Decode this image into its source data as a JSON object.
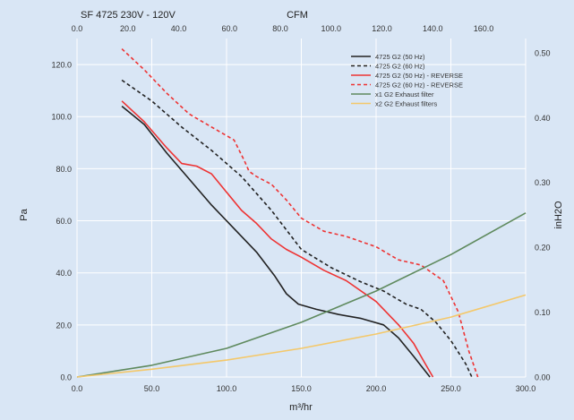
{
  "chart_data": {
    "type": "line",
    "title": "SF 4725  230V - 120V",
    "top_axis_label": "CFM",
    "xlabel": "m³/hr",
    "ylabel": "Pa",
    "y2label": "inH2O",
    "xlim": [
      0,
      300
    ],
    "ylim": [
      0,
      130
    ],
    "x_ticks": [
      "0.0",
      "50.0",
      "100.0",
      "150.0",
      "200.0",
      "250.0",
      "300.0"
    ],
    "y_ticks": [
      "0.0",
      "20.0",
      "40.0",
      "60.0",
      "80.0",
      "100.0",
      "120.0"
    ],
    "top_ticks": [
      "0.0",
      "20.0",
      "40.0",
      "60.0",
      "80.0",
      "100.0",
      "120.0",
      "140.0",
      "160.0"
    ],
    "y2_ticks": [
      "0.00",
      "0.10",
      "0.20",
      "0.30",
      "0.40",
      "0.50"
    ],
    "grid": true,
    "legend_position": "top-right",
    "series": [
      {
        "name": "4725 G2 (50 Hz)",
        "color": "#222222",
        "dash": false,
        "x": [
          30,
          45,
          60,
          75,
          90,
          105,
          120,
          132,
          140,
          148,
          160,
          175,
          190,
          205,
          215,
          225,
          236
        ],
        "y": [
          104,
          97,
          86,
          76,
          66,
          57,
          48,
          39,
          32,
          28,
          26,
          24,
          22.5,
          20,
          15,
          8,
          0
        ]
      },
      {
        "name": "4725 G2 (60 Hz)",
        "color": "#222222",
        "dash": true,
        "x": [
          30,
          50,
          70,
          90,
          110,
          130,
          150,
          170,
          190,
          205,
          220,
          230,
          240,
          250,
          260,
          264
        ],
        "y": [
          114,
          106,
          96,
          87,
          77,
          64,
          49,
          42,
          36.5,
          33,
          28,
          26,
          21,
          14,
          5,
          0
        ]
      },
      {
        "name": "4725 G2 (50 Hz) - REVERSE",
        "color": "#ee3333",
        "dash": false,
        "x": [
          30,
          45,
          60,
          70,
          80,
          90,
          100,
          110,
          120,
          130,
          140,
          150,
          165,
          180,
          200,
          215,
          225,
          232,
          238
        ],
        "y": [
          106,
          98,
          88,
          82,
          81,
          78,
          71,
          64,
          59,
          53,
          49,
          46,
          41,
          37,
          29,
          20,
          13,
          6,
          0
        ]
      },
      {
        "name": "4725 G2 (60 Hz) - REVERSE",
        "color": "#ee3333",
        "dash": true,
        "x": [
          30,
          45,
          60,
          75,
          90,
          105,
          112,
          115,
          120,
          130,
          140,
          150,
          165,
          180,
          200,
          215,
          230,
          245,
          255,
          262,
          268
        ],
        "y": [
          126,
          118,
          109,
          101,
          96,
          91,
          83,
          79,
          77,
          74,
          68,
          61,
          56,
          54,
          50,
          45,
          43,
          37,
          25,
          10,
          0
        ]
      },
      {
        "name": "x1 G2 Exhaust filter",
        "color": "#5f8a5e",
        "dash": false,
        "x": [
          0,
          50,
          100,
          150,
          200,
          250,
          300
        ],
        "y": [
          0,
          4.5,
          11,
          21,
          33,
          47,
          63
        ]
      },
      {
        "name": "x2 G2 Exhaust filters",
        "color": "#f4c86a",
        "dash": false,
        "x": [
          0,
          50,
          100,
          150,
          200,
          250,
          300
        ],
        "y": [
          0,
          3,
          6.5,
          11,
          16.5,
          23,
          31.5
        ]
      }
    ]
  }
}
